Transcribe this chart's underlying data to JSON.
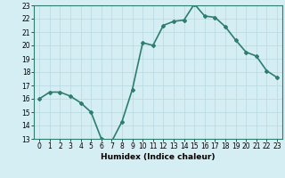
{
  "x": [
    0,
    1,
    2,
    3,
    4,
    5,
    6,
    7,
    8,
    9,
    10,
    11,
    12,
    13,
    14,
    15,
    16,
    17,
    18,
    19,
    20,
    21,
    22,
    23
  ],
  "y": [
    16.0,
    16.5,
    16.5,
    16.2,
    15.7,
    15.0,
    13.0,
    12.8,
    14.3,
    16.7,
    20.2,
    20.0,
    21.5,
    21.8,
    21.9,
    23.1,
    22.2,
    22.1,
    21.4,
    20.4,
    19.5,
    19.2,
    18.1,
    17.6
  ],
  "xlabel": "Humidex (Indice chaleur)",
  "ylim": [
    13,
    23
  ],
  "xlim": [
    -0.5,
    23.5
  ],
  "yticks": [
    13,
    14,
    15,
    16,
    17,
    18,
    19,
    20,
    21,
    22,
    23
  ],
  "xticks": [
    0,
    1,
    2,
    3,
    4,
    5,
    6,
    7,
    8,
    9,
    10,
    11,
    12,
    13,
    14,
    15,
    16,
    17,
    18,
    19,
    20,
    21,
    22,
    23
  ],
  "line_color": "#2e7d6e",
  "marker": "D",
  "marker_size": 2.0,
  "bg_color": "#d4eef4",
  "grid_color": "#b8d8e0",
  "line_width": 1.2,
  "tick_fontsize": 5.5,
  "xlabel_fontsize": 6.5
}
